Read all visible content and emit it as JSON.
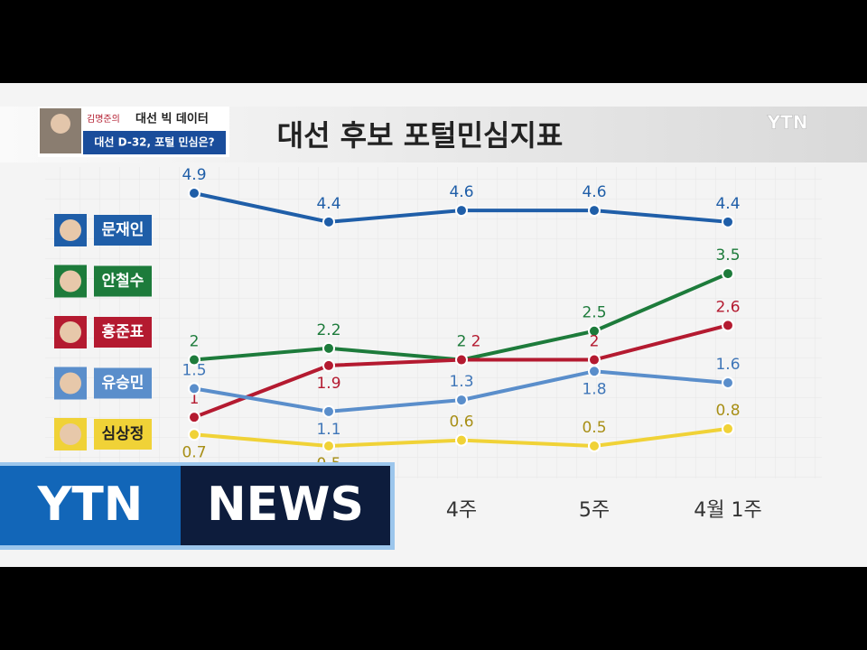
{
  "header": {
    "watermark": "YTN",
    "program": "김명준의",
    "show": "대선 빅 데이터",
    "subtitle": "대선 D-32, 포털 민심은?"
  },
  "logo": {
    "left": "YTN",
    "right": "NEWS"
  },
  "chart_data": {
    "type": "line",
    "title": "대선 후보 포털민심지표",
    "categories": [
      null,
      null,
      "4주",
      "5주",
      "4월 1주"
    ],
    "series": [
      {
        "name": "문재인",
        "color": "#1f5ea8",
        "values": [
          4.9,
          4.4,
          4.6,
          4.6,
          4.4
        ]
      },
      {
        "name": "안철수",
        "color": "#1d7b3b",
        "values": [
          2,
          2.2,
          2,
          2.5,
          3.5
        ]
      },
      {
        "name": "홍준표",
        "color": "#b41a30",
        "values": [
          1,
          1.9,
          2,
          2,
          2.6
        ]
      },
      {
        "name": "유승민",
        "color": "#5a8ecb",
        "values": [
          1.5,
          1.1,
          1.3,
          1.8,
          1.6
        ]
      },
      {
        "name": "심상정",
        "color": "#f0d237",
        "values": [
          0.7,
          0.5,
          0.6,
          0.5,
          0.8
        ]
      }
    ]
  }
}
